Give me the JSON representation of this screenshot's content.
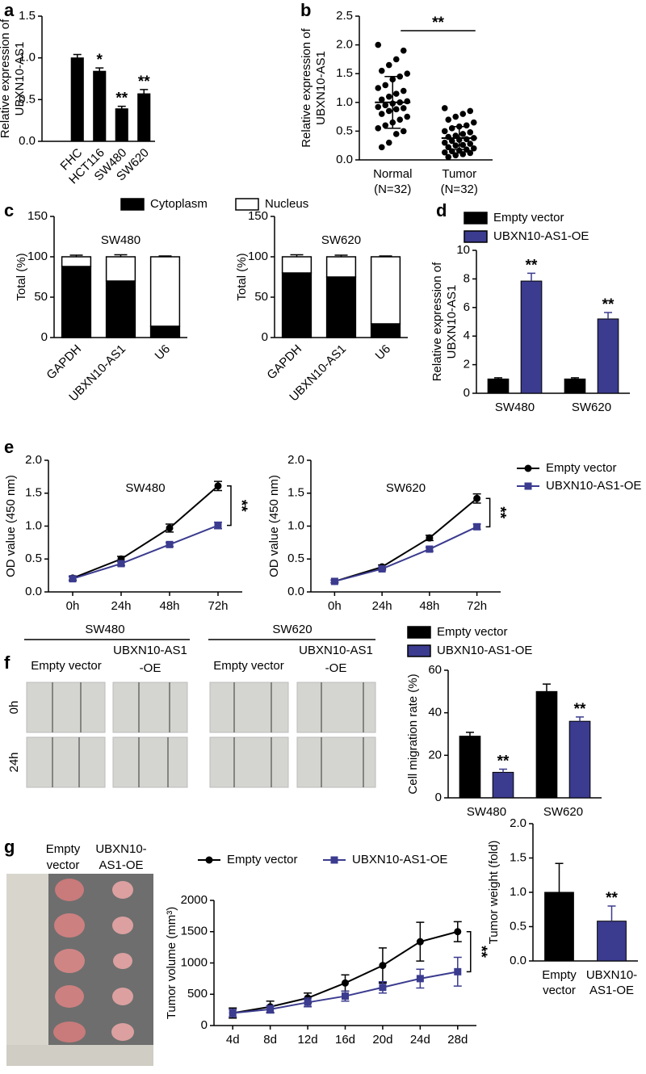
{
  "chart_data": [
    {
      "type": "bar",
      "panel": "a",
      "ylabel": [
        "Relative expression of",
        "UBXN10-AS1"
      ],
      "categories": [
        "FHC",
        "HCT116",
        "SW480",
        "SW620"
      ],
      "values": [
        1.0,
        0.84,
        0.39,
        0.57
      ],
      "errors": [
        0.04,
        0.04,
        0.03,
        0.05
      ],
      "sig": [
        null,
        "*",
        "**",
        "**"
      ],
      "color": "#000000",
      "ylim": [
        0,
        1.5
      ],
      "yticks": [
        {
          "value": 0,
          "label": "0.0"
        },
        0.5,
        {
          "value": 1,
          "label": "1.0"
        },
        1.5
      ]
    },
    {
      "type": "scatter",
      "panel": "b",
      "ylabel": [
        "Relative expression of",
        "UBXN10-AS1"
      ],
      "categories": [
        "Normal",
        "Tumor"
      ],
      "sublabels": [
        "(N=32)",
        "(N=32)"
      ],
      "values": [
        [
          2.0,
          1.9,
          1.75,
          1.65,
          1.55,
          1.5,
          1.45,
          1.4,
          1.3,
          1.25,
          1.2,
          1.15,
          1.1,
          1.05,
          1.02,
          1.0,
          0.98,
          0.95,
          0.92,
          0.9,
          0.88,
          0.85,
          0.8,
          0.75,
          0.7,
          0.65,
          0.6,
          0.55,
          0.5,
          0.45,
          0.3,
          0.22
        ],
        [
          0.9,
          0.85,
          0.8,
          0.75,
          0.7,
          0.65,
          0.6,
          0.58,
          0.55,
          0.5,
          0.48,
          0.45,
          0.42,
          0.4,
          0.38,
          0.36,
          0.35,
          0.33,
          0.3,
          0.28,
          0.26,
          0.25,
          0.22,
          0.2,
          0.18,
          0.16,
          0.15,
          0.13,
          0.12,
          0.1,
          0.08,
          0.05
        ]
      ],
      "mean": [
        1.0,
        0.38
      ],
      "sd": [
        0.45,
        0.2
      ],
      "significance": "**",
      "color": "#000000",
      "ylim": [
        0,
        2.5
      ],
      "yticks": [
        {
          "value": 0,
          "label": "0.0"
        },
        0.5,
        {
          "value": 1,
          "label": "1.0"
        },
        1.5,
        {
          "value": 2,
          "label": "2.0"
        },
        2.5
      ]
    },
    {
      "type": "stacked_bar",
      "panel": "c",
      "ylabel": "Total (%)",
      "categories": [
        "GAPDH",
        "UBXN10-AS1",
        "U6"
      ],
      "series": [
        {
          "name": "Cytoplasm",
          "color": "#000000"
        },
        {
          "name": "Nucleus",
          "color": "#ffffff"
        }
      ],
      "subplots": [
        {
          "title": "SW480",
          "values": [
            [
              88,
              70,
              14
            ],
            [
              12,
              30,
              86
            ]
          ],
          "errors": [
            [
              2,
              3,
              1.5
            ],
            [
              2,
              2.5,
              1
            ]
          ]
        },
        {
          "title": "SW620",
          "values": [
            [
              80,
              75,
              17
            ],
            [
              20,
              25,
              83
            ]
          ],
          "errors": [
            [
              3,
              2,
              1.5
            ],
            [
              2.5,
              2,
              1
            ]
          ]
        }
      ],
      "ylim": [
        0,
        150
      ],
      "yticks": [
        0,
        50,
        100,
        150
      ]
    },
    {
      "type": "bar",
      "panel": "d",
      "ylabel": [
        "Relative expression of",
        "UBXN10-AS1"
      ],
      "categories": [
        "SW480",
        "SW620"
      ],
      "series": [
        {
          "name": "Empty vector",
          "color": "#000000",
          "values": [
            1.0,
            1.0
          ],
          "errors": [
            0.08,
            0.08
          ]
        },
        {
          "name": "UBXN10-AS1-OE",
          "color": "#3b3b8f",
          "values": [
            7.85,
            5.2
          ],
          "errors": [
            0.55,
            0.45
          ],
          "sig": [
            "**",
            "**"
          ]
        }
      ],
      "ylim": [
        0,
        10
      ],
      "yticks": [
        0,
        2,
        4,
        6,
        8,
        10
      ]
    },
    {
      "type": "line",
      "panel": "e",
      "ylabel": "OD value (450 nm)",
      "categories": [
        "0h",
        "24h",
        "48h",
        "72h"
      ],
      "series": [
        {
          "name": "Empty vector",
          "color": "#000000",
          "marker": "circle"
        },
        {
          "name": "UBXN10-AS1-OE",
          "color": "#3b3b8f",
          "marker": "square"
        }
      ],
      "subplots": [
        {
          "title": "SW480",
          "values": [
            [
              0.21,
              0.5,
              0.97,
              1.61
            ],
            [
              0.2,
              0.43,
              0.72,
              1.01
            ]
          ],
          "errors": [
            [
              0.03,
              0.04,
              0.06,
              0.07
            ],
            [
              0.03,
              0.03,
              0.03,
              0.05
            ]
          ],
          "significance": "**"
        },
        {
          "title": "SW620",
          "values": [
            [
              0.16,
              0.38,
              0.82,
              1.42
            ],
            [
              0.16,
              0.35,
              0.65,
              0.99
            ]
          ],
          "errors": [
            [
              0.02,
              0.03,
              0.04,
              0.07
            ],
            [
              0.02,
              0.02,
              0.03,
              0.04
            ]
          ],
          "significance": "**"
        }
      ],
      "ylim": [
        0,
        2
      ],
      "yticks": [
        {
          "value": 0,
          "label": "0.0"
        },
        0.5,
        {
          "value": 1,
          "label": "1.0"
        },
        1.5,
        {
          "value": 2,
          "label": "2.0"
        }
      ]
    },
    {
      "type": "bar",
      "panel": "f",
      "ylabel": "Cell migration rate (%)",
      "image_groups": [
        "SW480",
        "SW620"
      ],
      "image_columns": [
        [
          "Empty vector"
        ],
        [
          "UBXN10-AS1",
          "-OE"
        ],
        [
          "Empty vector"
        ],
        [
          "UBXN10-AS1",
          "-OE"
        ]
      ],
      "image_rows": [
        "0h",
        "24h"
      ],
      "categories": [
        "SW480",
        "SW620"
      ],
      "series": [
        {
          "name": "Empty vector",
          "color": "#000000",
          "values": [
            29,
            50
          ],
          "errors": [
            1.8,
            3.5
          ]
        },
        {
          "name": "UBXN10-AS1-OE",
          "color": "#3b3b8f",
          "values": [
            12,
            36
          ],
          "errors": [
            1.5,
            2
          ],
          "sig": [
            "**",
            "**"
          ]
        }
      ],
      "ylim": [
        0,
        60
      ],
      "yticks": [
        0,
        20,
        40,
        60
      ]
    },
    {
      "type": "line",
      "panel": "g",
      "ylabel": "Tumor volume (mm³)",
      "photo_columns": [
        [
          "Empty",
          "vector"
        ],
        [
          "UBXN10-",
          "AS1-OE"
        ]
      ],
      "categories": [
        "4d",
        "8d",
        "12d",
        "16d",
        "20d",
        "24d",
        "28d"
      ],
      "series": [
        {
          "name": "Empty vector",
          "color": "#000000",
          "marker": "circle",
          "values": [
            200,
            300,
            440,
            680,
            960,
            1340,
            1500
          ],
          "errors": [
            80,
            90,
            80,
            130,
            280,
            310,
            160
          ]
        },
        {
          "name": "UBXN10-AS1-OE",
          "color": "#3b3b8f",
          "marker": "square",
          "values": [
            200,
            260,
            370,
            470,
            610,
            750,
            860
          ],
          "errors": [
            60,
            60,
            70,
            80,
            90,
            150,
            230
          ]
        }
      ],
      "significance": "**",
      "ylim": [
        0,
        2000
      ],
      "yticks": [
        0,
        500,
        1000,
        1500,
        2000
      ]
    },
    {
      "type": "bar",
      "ylabel": "Tumor weight (fold)",
      "categories": [
        [
          "Empty",
          "vector"
        ],
        [
          "UBXN10-",
          "AS1-OE"
        ]
      ],
      "values": [
        1.0,
        0.58
      ],
      "errors": [
        0.42,
        0.22
      ],
      "sig": [
        null,
        "**"
      ],
      "colors": [
        "#000000",
        "#3b3b8f"
      ],
      "ylim": [
        0,
        2
      ],
      "yticks": [
        {
          "value": 0,
          "label": "0.0"
        },
        0.5,
        {
          "value": 1,
          "label": "1.0"
        },
        1.5,
        {
          "value": 2,
          "label": "2.0"
        }
      ]
    }
  ]
}
